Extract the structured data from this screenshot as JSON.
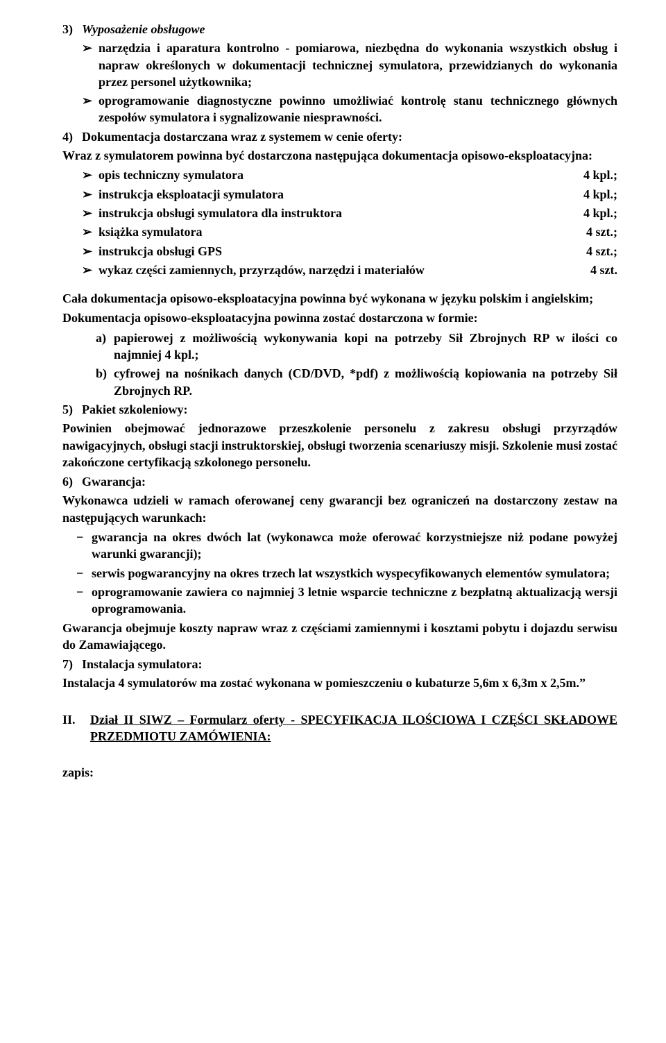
{
  "s3": {
    "heading_num": "3)",
    "heading_text": "Wyposażenie obsługowe",
    "bul1": "narzędzia i aparatura kontrolno - pomiarowa, niezbędna do wykonania wszystkich obsług i napraw określonych w dokumentacji technicznej symulatora, przewidzianych do wykonania przez personel użytkownika;",
    "bul2": "oprogramowanie diagnostyczne powinno umożliwiać kontrolę stanu technicznego głównych zespołów symulatora i sygnalizowanie niesprawności."
  },
  "s4": {
    "heading_num": "4)",
    "heading_text": "Dokumentacja dostarczana  wraz z systemem w cenie oferty:",
    "intro": "Wraz z symulatorem powinna być dostarczona następująca dokumentacja opisowo-eksploatacyjna:",
    "rows": [
      {
        "label": "opis techniczny symulatora",
        "val": "4 kpl.;"
      },
      {
        "label": "instrukcja eksploatacji symulatora",
        "val": "4 kpl.;"
      },
      {
        "label": "instrukcja obsługi symulatora dla instruktora",
        "val": "4 kpl.;"
      },
      {
        "label": "książka symulatora",
        "val": "4 szt.;"
      },
      {
        "label": "instrukcja obsługi GPS",
        "val": "4 szt.;"
      },
      {
        "label": "wykaz części zamiennych, przyrządów, narzędzi i materiałów",
        "val": "4 szt."
      }
    ]
  },
  "docblock": {
    "p1": "Cała dokumentacja opisowo-eksploatacyjna powinna być wykonana w języku polskim i angielskim;",
    "p2": "Dokumentacja opisowo-eksploatacyjna powinna zostać dostarczona w formie:",
    "a": "papierowej z możliwością wykonywania kopi na potrzeby Sił Zbrojnych RP w ilości co najmniej 4 kpl.;",
    "b": "cyfrowej na nośnikach danych (CD/DVD, *pdf) z możliwością kopiowania na potrzeby Sił Zbrojnych RP."
  },
  "s5": {
    "heading_num": "5)",
    "heading_text": "Pakiet szkoleniowy:",
    "body": "Powinien obejmować jednorazowe przeszkolenie personelu z zakresu obsługi przyrządów nawigacyjnych, obsługi stacji instruktorskiej, obsługi tworzenia scenariuszy misji. Szkolenie musi zostać  zakończone certyfikacją szkolonego personelu."
  },
  "s6": {
    "heading_num": "6)",
    "heading_text": "Gwarancja:",
    "intro": "Wykonawca udzieli w ramach oferowanej ceny gwarancji bez ograniczeń na dostarczony zestaw na następujących warunkach:",
    "d1": "gwarancja na okres dwóch lat (wykonawca może oferować korzystniejsze niż podane powyżej warunki gwarancji);",
    "d2": "serwis pogwarancyjny na okres trzech lat wszystkich wyspecyfikowanych elementów symulatora;",
    "d3": "oprogramowanie zawiera co najmniej 3 letnie wsparcie techniczne z bezpłatną aktualizacją wersji oprogramowania.",
    "tail": "Gwarancja obejmuje koszty napraw wraz z częściami zamiennymi i kosztami pobytu i dojazdu serwisu do Zamawiającego."
  },
  "s7": {
    "heading_num": "7)",
    "heading_text": "Instalacja symulatora:",
    "body": "Instalacja 4 symulatorów  ma zostać wykonana w pomieszczeniu o kubaturze 5,6m x 6,3m x 2,5m.”"
  },
  "sectionII": {
    "roman": "II.",
    "heading": "Dział II SIWZ – Formularz oferty - SPECYFIKACJA ILOŚCIOWA I CZĘŚCI SKŁADOWE PRZEDMIOTU ZAMÓWIENIA:"
  },
  "zapis": "zapis:",
  "arrow": "➢",
  "dash": "−"
}
